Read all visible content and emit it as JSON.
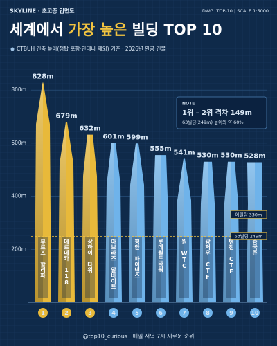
{
  "header": {
    "left": "SKYLINE · 초고층 입면도",
    "right": "DWG. TOP-10 | SCALE 1:5000"
  },
  "chart_data": {
    "type": "bar",
    "title": [
      "세계에서 ",
      "가장 높은",
      " 빌딩 TOP 10"
    ],
    "subtitle": "CTBUH 건축 높이(첨탑 포함·안테나 제외) 기준 · 2026년 완공 건물",
    "categories": [
      "부르즈 할리파",
      "메르데카 118",
      "상하이 타워",
      "아브라즈 알바이트",
      "핑안 파이낸스",
      "롯데월드타워",
      "원 WTC",
      "광저우 CTF",
      "톈진 CTF",
      "중국존"
    ],
    "ranks": [
      1,
      2,
      3,
      4,
      5,
      6,
      7,
      8,
      9,
      10
    ],
    "values": [
      828,
      679,
      632,
      601,
      599,
      555,
      541,
      530,
      530,
      528
    ],
    "value_labels": [
      "828m",
      "679m",
      "632m",
      "601m",
      "599m",
      "555m",
      "541m",
      "530m",
      "530m",
      "528m"
    ],
    "colors": [
      "#e8b93a",
      "#e8b93a",
      "#e8b93a",
      "#6fb3ea",
      "#6fb3ea",
      "#6fb3ea",
      "#6fb3ea",
      "#6fb3ea",
      "#6fb3ea",
      "#6fb3ea"
    ],
    "ylim": [
      0,
      850
    ],
    "yticks": [
      {
        "value": 200,
        "label": "200m"
      },
      {
        "value": 400,
        "label": "400m"
      },
      {
        "value": 600,
        "label": "600m"
      },
      {
        "value": 800,
        "label": "800m"
      }
    ],
    "grid": true,
    "reference_lines": [
      {
        "value": 330,
        "label": "에펠탑 330m"
      },
      {
        "value": 249,
        "label": "63빌딩 249m"
      }
    ],
    "note": {
      "heading": "NOTE",
      "headline": "1위 – 2위 격차 149m",
      "detail": "63빌딩(249m) 높이의 약 60%"
    }
  },
  "footer": "@top10_curious · 매일 저녁 7시 새로운 순위"
}
